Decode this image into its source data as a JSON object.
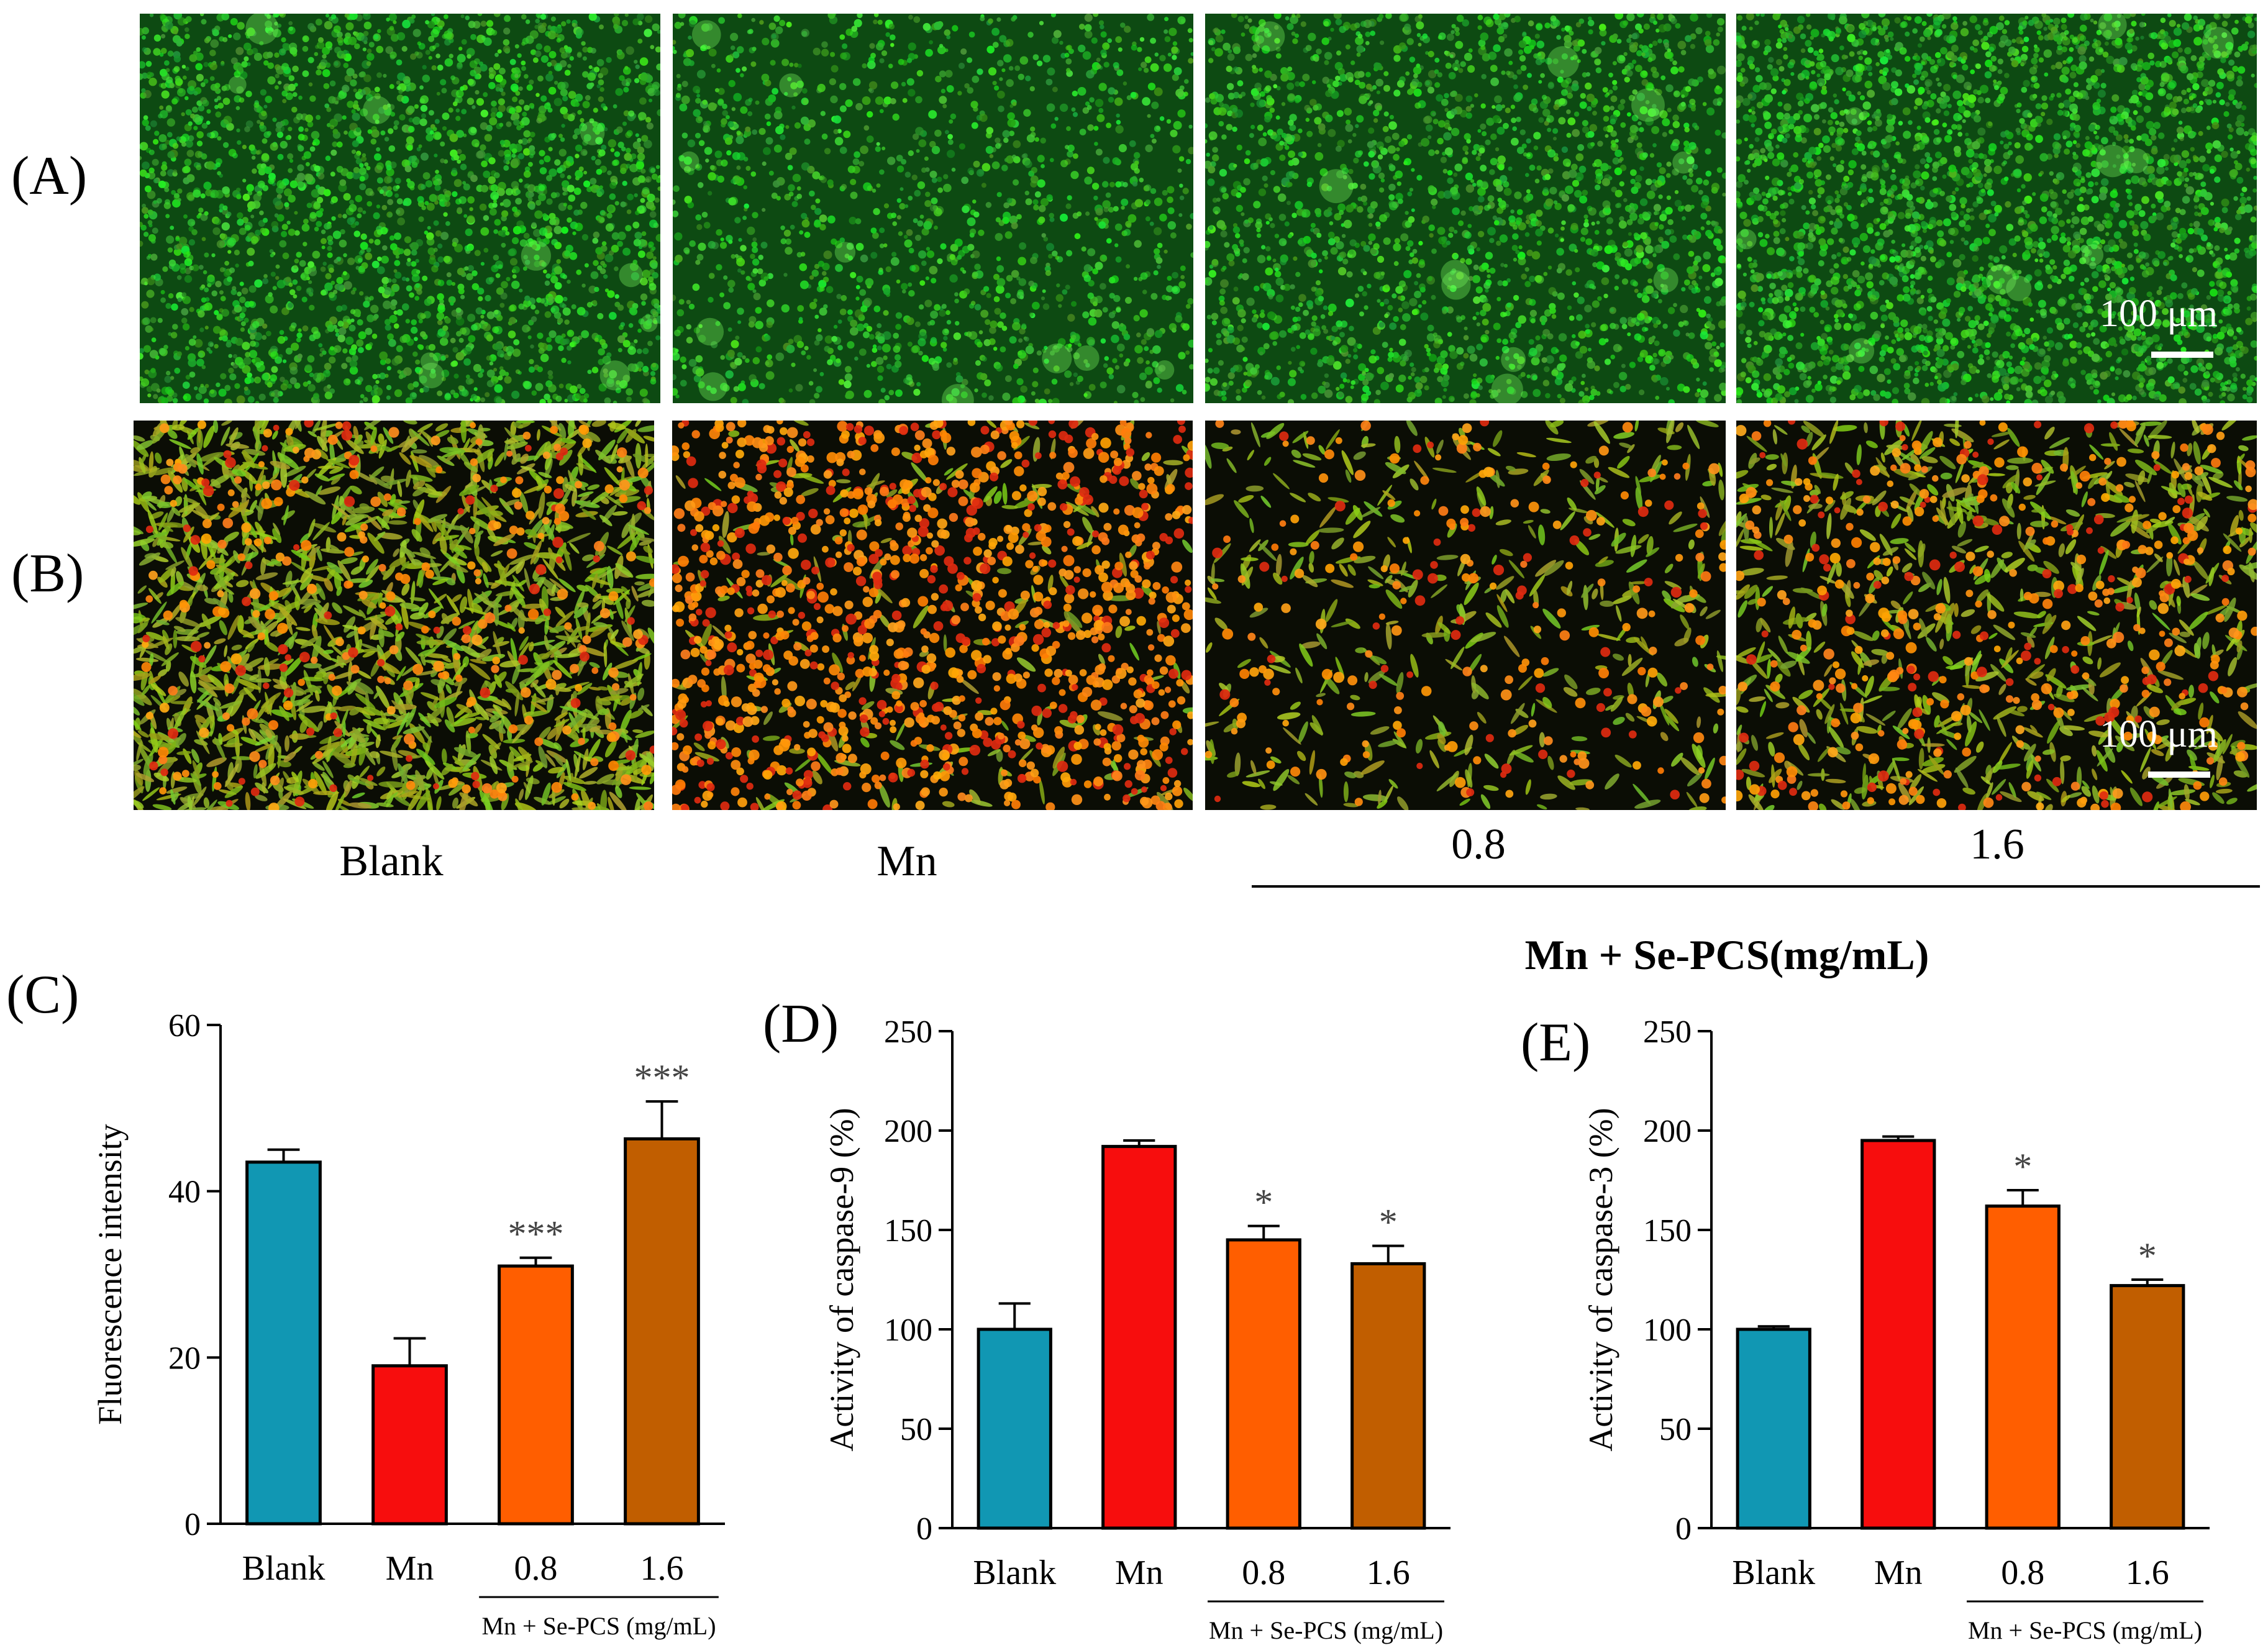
{
  "panel_labels": {
    "A": "(A)",
    "B": "(B)",
    "C": "(C)",
    "D": "(D)",
    "E": "(E)"
  },
  "conditions": {
    "blank": "Blank",
    "mn": "Mn",
    "low": "0.8",
    "high": "1.6",
    "group": "Mn + Se-PCS(mg/mL)"
  },
  "scale_bar": {
    "label": "100 μm"
  },
  "colors": {
    "blank": "#1197b3",
    "mn": "#f70d0d",
    "low": "#ff5e00",
    "high": "#c15e00",
    "green_stain": "#2fd125",
    "red_stain": "#ff6a12"
  },
  "chart_data": [
    {
      "id": "C",
      "type": "bar",
      "categories": [
        "Blank",
        "Mn",
        "0.8",
        "1.6"
      ],
      "values": [
        43.5,
        19.0,
        31.0,
        46.3
      ],
      "errors": [
        1.5,
        3.3,
        1.0,
        4.5
      ],
      "significance": [
        "",
        "",
        "***",
        "***"
      ],
      "ylabel": "Fluorescence intensity",
      "ylim": [
        0,
        60
      ],
      "yticks": [
        0,
        20,
        40,
        60
      ],
      "group_label": "Mn + Se-PCS (mg/mL)"
    },
    {
      "id": "D",
      "type": "bar",
      "categories": [
        "Blank",
        "Mn",
        "0.8",
        "1.6"
      ],
      "values": [
        100,
        192,
        145,
        133
      ],
      "errors": [
        13,
        3,
        7,
        9
      ],
      "significance": [
        "",
        "",
        "*",
        "*"
      ],
      "ylabel": "Activity of caspase-9 (%)",
      "ylim": [
        0,
        250
      ],
      "yticks": [
        0,
        50,
        100,
        150,
        200,
        250
      ],
      "group_label": "Mn + Se-PCS (mg/mL)"
    },
    {
      "id": "E",
      "type": "bar",
      "categories": [
        "Blank",
        "Mn",
        "0.8",
        "1.6"
      ],
      "values": [
        100,
        195,
        162,
        122
      ],
      "errors": [
        1.5,
        2,
        8,
        3
      ],
      "significance": [
        "",
        "",
        "*",
        "*"
      ],
      "ylabel": "Activity of caspase-3 (%)",
      "ylim": [
        0,
        250
      ],
      "yticks": [
        0,
        50,
        100,
        150,
        200,
        250
      ],
      "group_label": "Mn + Se-PCS (mg/mL)"
    }
  ]
}
